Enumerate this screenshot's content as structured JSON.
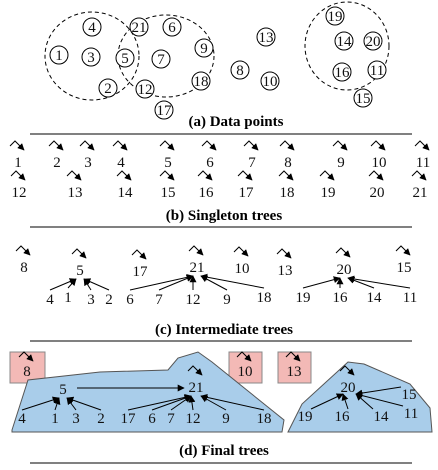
{
  "panels": {
    "a": {
      "caption": "(a) Data points",
      "points": [
        {
          "id": "1"
        },
        {
          "id": "2"
        },
        {
          "id": "3"
        },
        {
          "id": "4"
        },
        {
          "id": "5"
        },
        {
          "id": "6"
        },
        {
          "id": "7"
        },
        {
          "id": "8"
        },
        {
          "id": "9"
        },
        {
          "id": "10"
        },
        {
          "id": "11"
        },
        {
          "id": "12"
        },
        {
          "id": "13"
        },
        {
          "id": "14"
        },
        {
          "id": "15"
        },
        {
          "id": "16"
        },
        {
          "id": "17"
        },
        {
          "id": "18"
        },
        {
          "id": "19"
        },
        {
          "id": "20"
        },
        {
          "id": "21"
        }
      ]
    },
    "b": {
      "caption": "(b) Singleton trees",
      "row1": [
        "1",
        "2",
        "3",
        "4",
        "5",
        "6",
        "7",
        "8",
        "9",
        "10",
        "11"
      ],
      "row2": [
        "12",
        "13",
        "14",
        "15",
        "16",
        "17",
        "18",
        "19",
        "20",
        "21"
      ]
    },
    "c": {
      "caption": "(c) Intermediate trees",
      "trees": [
        {
          "root": "8",
          "children": []
        },
        {
          "root": "5",
          "children": [
            "4",
            "1",
            "3",
            "2"
          ]
        },
        {
          "root": "17",
          "children": []
        },
        {
          "root": "21",
          "children": [
            "6",
            "7",
            "12",
            "9",
            "18"
          ]
        },
        {
          "root": "10",
          "children": []
        },
        {
          "root": "13",
          "children": []
        },
        {
          "root": "20",
          "children": [
            "19",
            "16",
            "14",
            "11"
          ]
        },
        {
          "root": "15",
          "children": []
        }
      ]
    },
    "d": {
      "caption": "(d) Final trees",
      "singletons": [
        "8",
        "10",
        "13"
      ],
      "clusters": [
        {
          "root": "21",
          "children": [
            "5",
            "17",
            "6",
            "7",
            "12",
            "9",
            "18"
          ],
          "sub_root": "5",
          "sub_children": [
            "4",
            "1",
            "3",
            "2"
          ]
        },
        {
          "root": "20",
          "children": [
            "19",
            "16",
            "14",
            "11",
            "15"
          ]
        }
      ]
    }
  },
  "colors": {
    "cluster_fill": "#a9cdea",
    "singleton_fill": "#f3b9b6"
  }
}
